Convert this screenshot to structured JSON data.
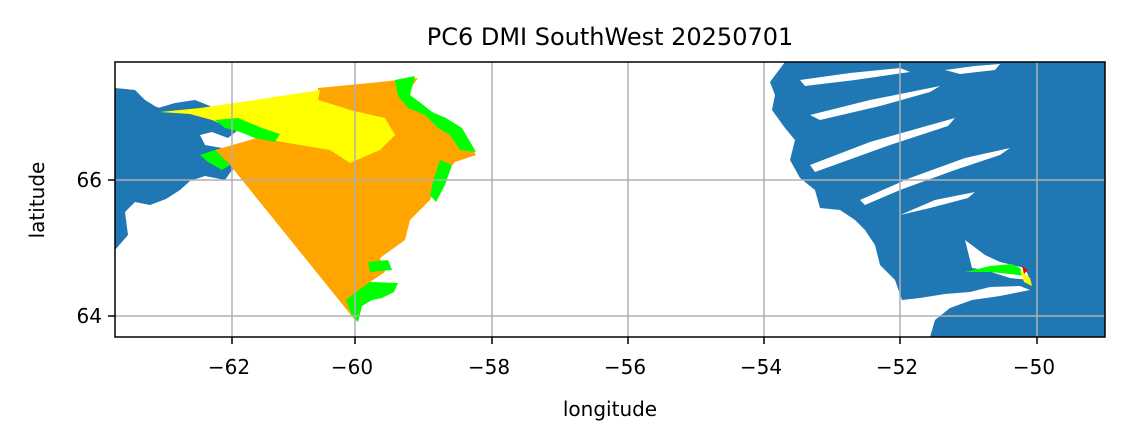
{
  "title": "PC6 DMI SouthWest 20250701",
  "xlabel": "longitude",
  "ylabel": "latitude",
  "colors": {
    "land": "#1f77b4",
    "ice_high": "#ffa500",
    "ice_mid": "#ffff00",
    "ice_low": "#00ff00",
    "ice_edge": "#ff0000",
    "grid": "#b0b0b0"
  },
  "chart_data": {
    "type": "map",
    "xlim": [
      -63.5,
      -49
    ],
    "ylim": [
      63.7,
      67.7
    ],
    "grid": true,
    "x_ticks": [
      {
        "value": -62,
        "label": "−62"
      },
      {
        "value": -60,
        "label": "−60"
      },
      {
        "value": -58,
        "label": "−58"
      },
      {
        "value": -56,
        "label": "−56"
      },
      {
        "value": -54,
        "label": "−54"
      },
      {
        "value": -52,
        "label": "−52"
      },
      {
        "value": -50,
        "label": "−50"
      }
    ],
    "y_ticks": [
      {
        "value": 64,
        "label": "64"
      },
      {
        "value": 66,
        "label": "66"
      }
    ]
  }
}
